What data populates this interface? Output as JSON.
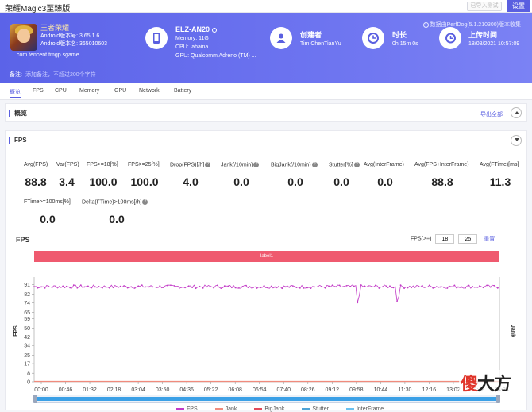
{
  "app": {
    "window_title": "荣耀Magic3至臻版",
    "btn_export_ghost": "已导入测试",
    "btn_settings": "设置"
  },
  "hero": {
    "collected_by": "数据由PerfDog(5.1.210300)版本收集",
    "game_name": "王者荣耀",
    "android_version": "Android版本号: 3.65.1.6",
    "android_build": "Android版本名: 365010603",
    "package": "com.tencent.tmgp.sgame",
    "device_model": "ELZ-AN20",
    "memory": "Memory: 11G",
    "cpu": "CPU: lahaina",
    "gpu": "GPU: Qualcomm Adreno (TM) ...",
    "creator_label": "创建者",
    "creator_value": "Tim ChenTianYu",
    "duration_label": "时长",
    "duration_value": "0h 15m 0s",
    "upload_label": "上传时间",
    "upload_value": "18/08/2021 10:57:09",
    "note_label": "备注:",
    "note_placeholder": "添加备注，不超过200个字符"
  },
  "tabs": [
    "概览",
    "FPS",
    "CPU",
    "Memory",
    "GPU",
    "Network",
    "Battery"
  ],
  "overview": {
    "title": "概览",
    "export_all": "导出全部"
  },
  "fps_panel": {
    "title": "FPS",
    "stats": [
      {
        "label": "Avg(FPS)",
        "value": "88.8",
        "help": false
      },
      {
        "label": "Var(FPS)",
        "value": "3.4",
        "help": false
      },
      {
        "label": "FPS>=18[%]",
        "value": "100.0",
        "help": false
      },
      {
        "label": "FPS>=25[%]",
        "value": "100.0",
        "help": false
      },
      {
        "label": "Drop(FPS)[/h]",
        "value": "4.0",
        "help": true
      },
      {
        "label": "Jank(/10min)",
        "value": "0.0",
        "help": true
      },
      {
        "label": "BigJank(/10min)",
        "value": "0.0",
        "help": true
      },
      {
        "label": "Stutter[%]",
        "value": "0.0",
        "help": true
      },
      {
        "label": "Avg(InterFrame)",
        "value": "0.0",
        "help": false
      },
      {
        "label": "Avg(FPS+InterFrame)",
        "value": "88.8",
        "help": false
      },
      {
        "label": "Avg(FTime)[ms]",
        "value": "11.3",
        "help": false
      }
    ],
    "stats2": [
      {
        "label": "FTime>=100ms[%]",
        "value": "0.0",
        "help": false
      },
      {
        "label": "Delta(FTime)>100ms[/h]",
        "value": "0.0",
        "help": true
      }
    ],
    "chart_title": "FPS",
    "fps_filter_label": "FPS(>=)",
    "fps_filter_a": "18",
    "fps_filter_b": "25",
    "reset": "重置",
    "label_bar": "label1",
    "legend": [
      "FPS",
      "Jank",
      "BigJank",
      "Stutter",
      "InterFrame"
    ],
    "legend_colors": [
      "#c23bc7",
      "#f08b7d",
      "#e24a5a",
      "#4fa3d6",
      "#6bc1ef"
    ],
    "watermark": "傻大方"
  },
  "chart_data": {
    "type": "line",
    "title": "FPS",
    "ylabel": "FPS",
    "ylabel_right": "Jank",
    "ylim": [
      0,
      95
    ],
    "yticks": [
      0,
      8,
      17,
      25,
      34,
      42,
      50,
      59,
      65,
      74,
      82,
      91
    ],
    "xticks": [
      "00:00",
      "00:46",
      "01:32",
      "02:18",
      "03:04",
      "03:50",
      "04:36",
      "05:22",
      "06:08",
      "06:54",
      "07:40",
      "08:26",
      "09:12",
      "09:58",
      "10:44",
      "11:30",
      "12:16",
      "13:02",
      "13:48",
      "14:34"
    ],
    "series": [
      {
        "name": "FPS",
        "baseline": 89,
        "dips": [
          {
            "t": 0.695,
            "v": 74
          },
          {
            "t": 0.781,
            "v": 75
          },
          {
            "t": 0.783,
            "v": 80
          },
          {
            "t": 0.698,
            "v": 81
          }
        ]
      },
      {
        "name": "Jank",
        "values": 0
      }
    ],
    "grid": false,
    "legend": "bottom-center"
  }
}
